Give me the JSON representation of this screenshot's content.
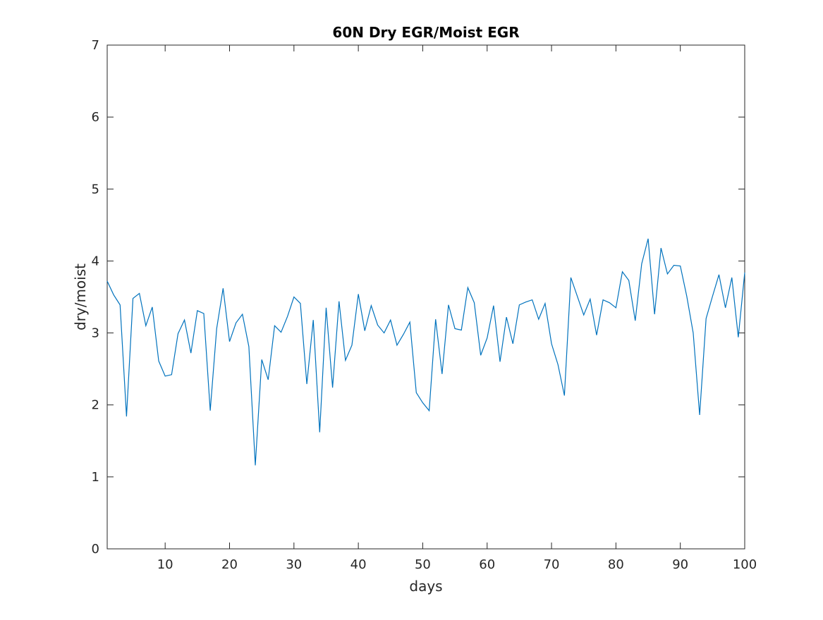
{
  "chart_data": {
    "type": "line",
    "title": "60N Dry EGR/Moist EGR",
    "xlabel": "days",
    "ylabel": "dry/moist",
    "xlim": [
      1,
      100
    ],
    "ylim": [
      0,
      7
    ],
    "xticks": [
      10,
      20,
      30,
      40,
      50,
      60,
      70,
      80,
      90,
      100
    ],
    "yticks": [
      0,
      1,
      2,
      3,
      4,
      5,
      6,
      7
    ],
    "grid": false,
    "legend": "none",
    "colors": {
      "series": "#0072bd",
      "axes": "#262626"
    },
    "series": [
      {
        "x": [
          1,
          2,
          3,
          4,
          5,
          6,
          7,
          8,
          9,
          10,
          11,
          12,
          13,
          14,
          15,
          16,
          17,
          18,
          19,
          20,
          21,
          22,
          23,
          24,
          25,
          26,
          27,
          28,
          29,
          30,
          31,
          32,
          33,
          34,
          35,
          36,
          37,
          38,
          39,
          40,
          41,
          42,
          43,
          44,
          45,
          46,
          47,
          48,
          49,
          50,
          51,
          52,
          53,
          54,
          55,
          56,
          57,
          58,
          59,
          60,
          61,
          62,
          63,
          64,
          65,
          66,
          67,
          68,
          69,
          70,
          71,
          72,
          73,
          74,
          75,
          76,
          77,
          78,
          79,
          80,
          81,
          82,
          83,
          84,
          85,
          86,
          87,
          88,
          89,
          90,
          91,
          92,
          93,
          94,
          95,
          96,
          97,
          98,
          99,
          100
        ],
        "values": [
          3.72,
          3.53,
          3.39,
          1.84,
          3.48,
          3.55,
          3.1,
          3.36,
          2.61,
          2.4,
          2.42,
          2.99,
          3.18,
          2.72,
          3.31,
          3.27,
          1.92,
          3.06,
          3.62,
          2.88,
          3.14,
          3.26,
          2.81,
          1.16,
          2.63,
          2.35,
          3.1,
          3.01,
          3.23,
          3.5,
          3.41,
          2.29,
          3.18,
          1.62,
          3.35,
          2.24,
          3.44,
          2.62,
          2.83,
          3.54,
          3.03,
          3.38,
          3.11,
          3.0,
          3.18,
          2.83,
          2.98,
          3.15,
          2.17,
          2.03,
          1.92,
          3.19,
          2.43,
          3.39,
          3.06,
          3.04,
          3.63,
          3.42,
          2.69,
          2.93,
          3.38,
          2.6,
          3.22,
          2.85,
          3.39,
          3.43,
          3.46,
          3.19,
          3.41,
          2.85,
          2.56,
          2.13,
          3.77,
          3.51,
          3.25,
          3.47,
          2.97,
          3.46,
          3.42,
          3.35,
          3.85,
          3.73,
          3.17,
          3.96,
          4.31,
          3.26,
          4.18,
          3.82,
          3.94,
          3.93,
          3.51,
          3.0,
          1.86,
          3.2,
          3.51,
          3.81,
          3.35,
          3.77,
          2.94,
          3.84
        ]
      }
    ]
  }
}
